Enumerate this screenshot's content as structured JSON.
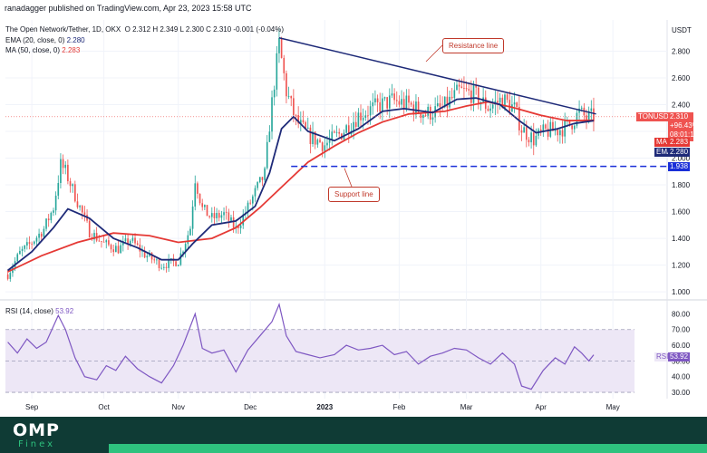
{
  "header": {
    "publisher": "ranadagger published on TradingView.com, Apr 23, 2023 15:58 UTC"
  },
  "legend": {
    "symbol": "The Open Network/Tether, 1D, OKX",
    "ohlc": "O 2.312  H 2.349  L 2.300  C 2.310  -0.001 (-0.04%)",
    "ema_label": "EMA (20, close, 0)",
    "ema_value": "2.280",
    "ma_label": "MA (50, close, 0)",
    "ma_value": "2.283",
    "rsi_label": "RSI (14, close)",
    "rsi_value": "53.92"
  },
  "price_tags": {
    "symbol": "TONUSDT",
    "price": "2.310",
    "change": "+96.43%",
    "countdown": "08:01:18",
    "ma_tag": "MA",
    "ma_value": "2.283",
    "ema_tag": "EMA",
    "ema_value": "2.280",
    "support_value": "1.938",
    "rsi_tag": "RSI",
    "rsi_value": "53.92"
  },
  "annotations": {
    "resistance": "Resistance line",
    "support": "Support line"
  },
  "footer": {
    "logo": "OMP",
    "logo_sub": "Finex"
  },
  "colors": {
    "up": "#26a69a",
    "down": "#ef5350",
    "ema": "#1e2a78",
    "ma": "#e53935",
    "trend": "#1e2a78",
    "support": "#1a2fd8",
    "rsi": "#7e57c2",
    "rsi_band": "#ede7f6"
  },
  "chart_data": [
    {
      "type": "candlestick",
      "currency": "USDT",
      "y_axis_ticks": [
        1.0,
        1.2,
        1.4,
        1.6,
        1.8,
        2.0,
        2.2,
        2.4,
        2.6,
        2.8
      ],
      "y_axis_tick_labels": [
        "1.000",
        "1.200",
        "1.400",
        "1.600",
        "1.800",
        "2.000",
        "2.200",
        "2.400",
        "2.600",
        "2.800"
      ],
      "ylim": [
        0.96,
        3.02
      ],
      "x_axis_ticks": [
        "Sep",
        "Oct",
        "Nov",
        "Dec",
        "2023",
        "Feb",
        "Mar",
        "Apr",
        "May"
      ],
      "x_axis_tick_dates": [
        "2022-09-01",
        "2022-10-01",
        "2022-11-01",
        "2022-12-01",
        "2023-01-01",
        "2023-02-01",
        "2023-03-01",
        "2023-04-01",
        "2023-05-01"
      ],
      "xlim": [
        "2022-08-21",
        "2023-05-10"
      ],
      "close_path": [
        [
          "2022-08-22",
          1.13
        ],
        [
          "2022-08-27",
          1.29
        ],
        [
          "2022-09-01",
          1.37
        ],
        [
          "2022-09-06",
          1.47
        ],
        [
          "2022-09-10",
          1.63
        ],
        [
          "2022-09-13",
          1.95
        ],
        [
          "2022-09-15",
          1.9
        ],
        [
          "2022-09-19",
          1.72
        ],
        [
          "2022-09-25",
          1.45
        ],
        [
          "2022-10-01",
          1.36
        ],
        [
          "2022-10-07",
          1.32
        ],
        [
          "2022-10-12",
          1.39
        ],
        [
          "2022-10-18",
          1.28
        ],
        [
          "2022-10-25",
          1.2
        ],
        [
          "2022-11-01",
          1.23
        ],
        [
          "2022-11-06",
          1.48
        ],
        [
          "2022-11-08",
          1.85
        ],
        [
          "2022-11-11",
          1.62
        ],
        [
          "2022-11-15",
          1.55
        ],
        [
          "2022-11-20",
          1.58
        ],
        [
          "2022-11-25",
          1.47
        ],
        [
          "2022-11-30",
          1.63
        ],
        [
          "2022-12-04",
          1.78
        ],
        [
          "2022-12-07",
          1.88
        ],
        [
          "2022-12-09",
          2.25
        ],
        [
          "2022-12-11",
          2.57
        ],
        [
          "2022-12-13",
          2.85
        ],
        [
          "2022-12-16",
          2.5
        ],
        [
          "2022-12-20",
          2.28
        ],
        [
          "2022-12-25",
          2.17
        ],
        [
          "2023-01-01",
          2.1
        ],
        [
          "2023-01-08",
          2.19
        ],
        [
          "2023-01-15",
          2.32
        ],
        [
          "2023-01-22",
          2.38
        ],
        [
          "2023-01-29",
          2.43
        ],
        [
          "2023-02-05",
          2.4
        ],
        [
          "2023-02-12",
          2.33
        ],
        [
          "2023-02-19",
          2.37
        ],
        [
          "2023-02-26",
          2.5
        ],
        [
          "2023-03-04",
          2.48
        ],
        [
          "2023-03-10",
          2.38
        ],
        [
          "2023-03-16",
          2.44
        ],
        [
          "2023-03-21",
          2.37
        ],
        [
          "2023-03-24",
          2.22
        ],
        [
          "2023-03-29",
          2.14
        ],
        [
          "2023-04-03",
          2.2
        ],
        [
          "2023-04-08",
          2.21
        ],
        [
          "2023-04-13",
          2.25
        ],
        [
          "2023-04-17",
          2.34
        ],
        [
          "2023-04-20",
          2.3
        ],
        [
          "2023-04-23",
          2.31
        ]
      ],
      "ema20_path": [
        [
          "2022-08-22",
          1.16
        ],
        [
          "2022-09-01",
          1.3
        ],
        [
          "2022-09-10",
          1.48
        ],
        [
          "2022-09-16",
          1.62
        ],
        [
          "2022-09-25",
          1.55
        ],
        [
          "2022-10-05",
          1.4
        ],
        [
          "2022-10-15",
          1.33
        ],
        [
          "2022-10-25",
          1.24
        ],
        [
          "2022-11-01",
          1.24
        ],
        [
          "2022-11-07",
          1.36
        ],
        [
          "2022-11-15",
          1.5
        ],
        [
          "2022-11-25",
          1.53
        ],
        [
          "2022-12-03",
          1.64
        ],
        [
          "2022-12-09",
          1.89
        ],
        [
          "2022-12-14",
          2.22
        ],
        [
          "2022-12-19",
          2.31
        ],
        [
          "2022-12-25",
          2.2
        ],
        [
          "2023-01-05",
          2.13
        ],
        [
          "2023-01-15",
          2.22
        ],
        [
          "2023-01-25",
          2.35
        ],
        [
          "2023-02-03",
          2.37
        ],
        [
          "2023-02-15",
          2.34
        ],
        [
          "2023-02-25",
          2.44
        ],
        [
          "2023-03-05",
          2.45
        ],
        [
          "2023-03-15",
          2.4
        ],
        [
          "2023-03-23",
          2.28
        ],
        [
          "2023-03-30",
          2.19
        ],
        [
          "2023-04-08",
          2.22
        ],
        [
          "2023-04-15",
          2.26
        ],
        [
          "2023-04-23",
          2.28
        ]
      ],
      "ma50_path": [
        [
          "2022-08-22",
          1.15
        ],
        [
          "2022-09-05",
          1.27
        ],
        [
          "2022-09-20",
          1.37
        ],
        [
          "2022-10-05",
          1.44
        ],
        [
          "2022-10-20",
          1.42
        ],
        [
          "2022-11-01",
          1.37
        ],
        [
          "2022-11-15",
          1.4
        ],
        [
          "2022-11-25",
          1.48
        ],
        [
          "2022-12-05",
          1.63
        ],
        [
          "2022-12-15",
          1.8
        ],
        [
          "2022-12-25",
          1.97
        ],
        [
          "2023-01-05",
          2.09
        ],
        [
          "2023-01-15",
          2.19
        ],
        [
          "2023-01-25",
          2.27
        ],
        [
          "2023-02-05",
          2.33
        ],
        [
          "2023-02-20",
          2.35
        ],
        [
          "2023-03-01",
          2.39
        ],
        [
          "2023-03-10",
          2.42
        ],
        [
          "2023-03-20",
          2.38
        ],
        [
          "2023-04-01",
          2.32
        ],
        [
          "2023-04-12",
          2.28
        ],
        [
          "2023-04-23",
          2.283
        ]
      ],
      "resistance_line": [
        [
          "2022-12-13",
          2.9
        ],
        [
          "2023-04-24",
          2.33
        ]
      ],
      "support_line": [
        [
          "2022-12-18",
          1.938
        ],
        [
          "2023-04-30",
          1.938
        ]
      ],
      "support_level": 1.938
    },
    {
      "type": "line",
      "y_axis_ticks": [
        30,
        40,
        50,
        60,
        70,
        80
      ],
      "y_axis_tick_labels": [
        "30.00",
        "40.00",
        "50.00",
        "60.00",
        "70.00",
        "80.00"
      ],
      "ylim": [
        26,
        86
      ],
      "band": [
        30,
        70
      ],
      "midline": 50,
      "rsi_path": [
        [
          "2022-08-22",
          62
        ],
        [
          "2022-08-26",
          55
        ],
        [
          "2022-08-30",
          64
        ],
        [
          "2022-09-03",
          58
        ],
        [
          "2022-09-07",
          62
        ],
        [
          "2022-09-12",
          79
        ],
        [
          "2022-09-15",
          70
        ],
        [
          "2022-09-19",
          52
        ],
        [
          "2022-09-23",
          40
        ],
        [
          "2022-09-28",
          38
        ],
        [
          "2022-10-02",
          47
        ],
        [
          "2022-10-06",
          44
        ],
        [
          "2022-10-10",
          53
        ],
        [
          "2022-10-15",
          45
        ],
        [
          "2022-10-20",
          40
        ],
        [
          "2022-10-25",
          36
        ],
        [
          "2022-10-30",
          47
        ],
        [
          "2022-11-03",
          60
        ],
        [
          "2022-11-08",
          80
        ],
        [
          "2022-11-11",
          58
        ],
        [
          "2022-11-15",
          55
        ],
        [
          "2022-11-20",
          57
        ],
        [
          "2022-11-25",
          43
        ],
        [
          "2022-11-30",
          57
        ],
        [
          "2022-12-05",
          66
        ],
        [
          "2022-12-10",
          75
        ],
        [
          "2022-12-13",
          86
        ],
        [
          "2022-12-16",
          66
        ],
        [
          "2022-12-20",
          56
        ],
        [
          "2022-12-25",
          54
        ],
        [
          "2022-12-30",
          52
        ],
        [
          "2023-01-05",
          54
        ],
        [
          "2023-01-10",
          60
        ],
        [
          "2023-01-15",
          57
        ],
        [
          "2023-01-20",
          58
        ],
        [
          "2023-01-25",
          60
        ],
        [
          "2023-01-30",
          54
        ],
        [
          "2023-02-04",
          56
        ],
        [
          "2023-02-09",
          48
        ],
        [
          "2023-02-14",
          53
        ],
        [
          "2023-02-19",
          55
        ],
        [
          "2023-02-24",
          58
        ],
        [
          "2023-03-01",
          57
        ],
        [
          "2023-03-06",
          52
        ],
        [
          "2023-03-11",
          48
        ],
        [
          "2023-03-16",
          55
        ],
        [
          "2023-03-21",
          48
        ],
        [
          "2023-03-24",
          34
        ],
        [
          "2023-03-28",
          32
        ],
        [
          "2023-04-02",
          44
        ],
        [
          "2023-04-07",
          52
        ],
        [
          "2023-04-11",
          48
        ],
        [
          "2023-04-15",
          59
        ],
        [
          "2023-04-18",
          55
        ],
        [
          "2023-04-21",
          50
        ],
        [
          "2023-04-23",
          53.92
        ]
      ]
    }
  ]
}
